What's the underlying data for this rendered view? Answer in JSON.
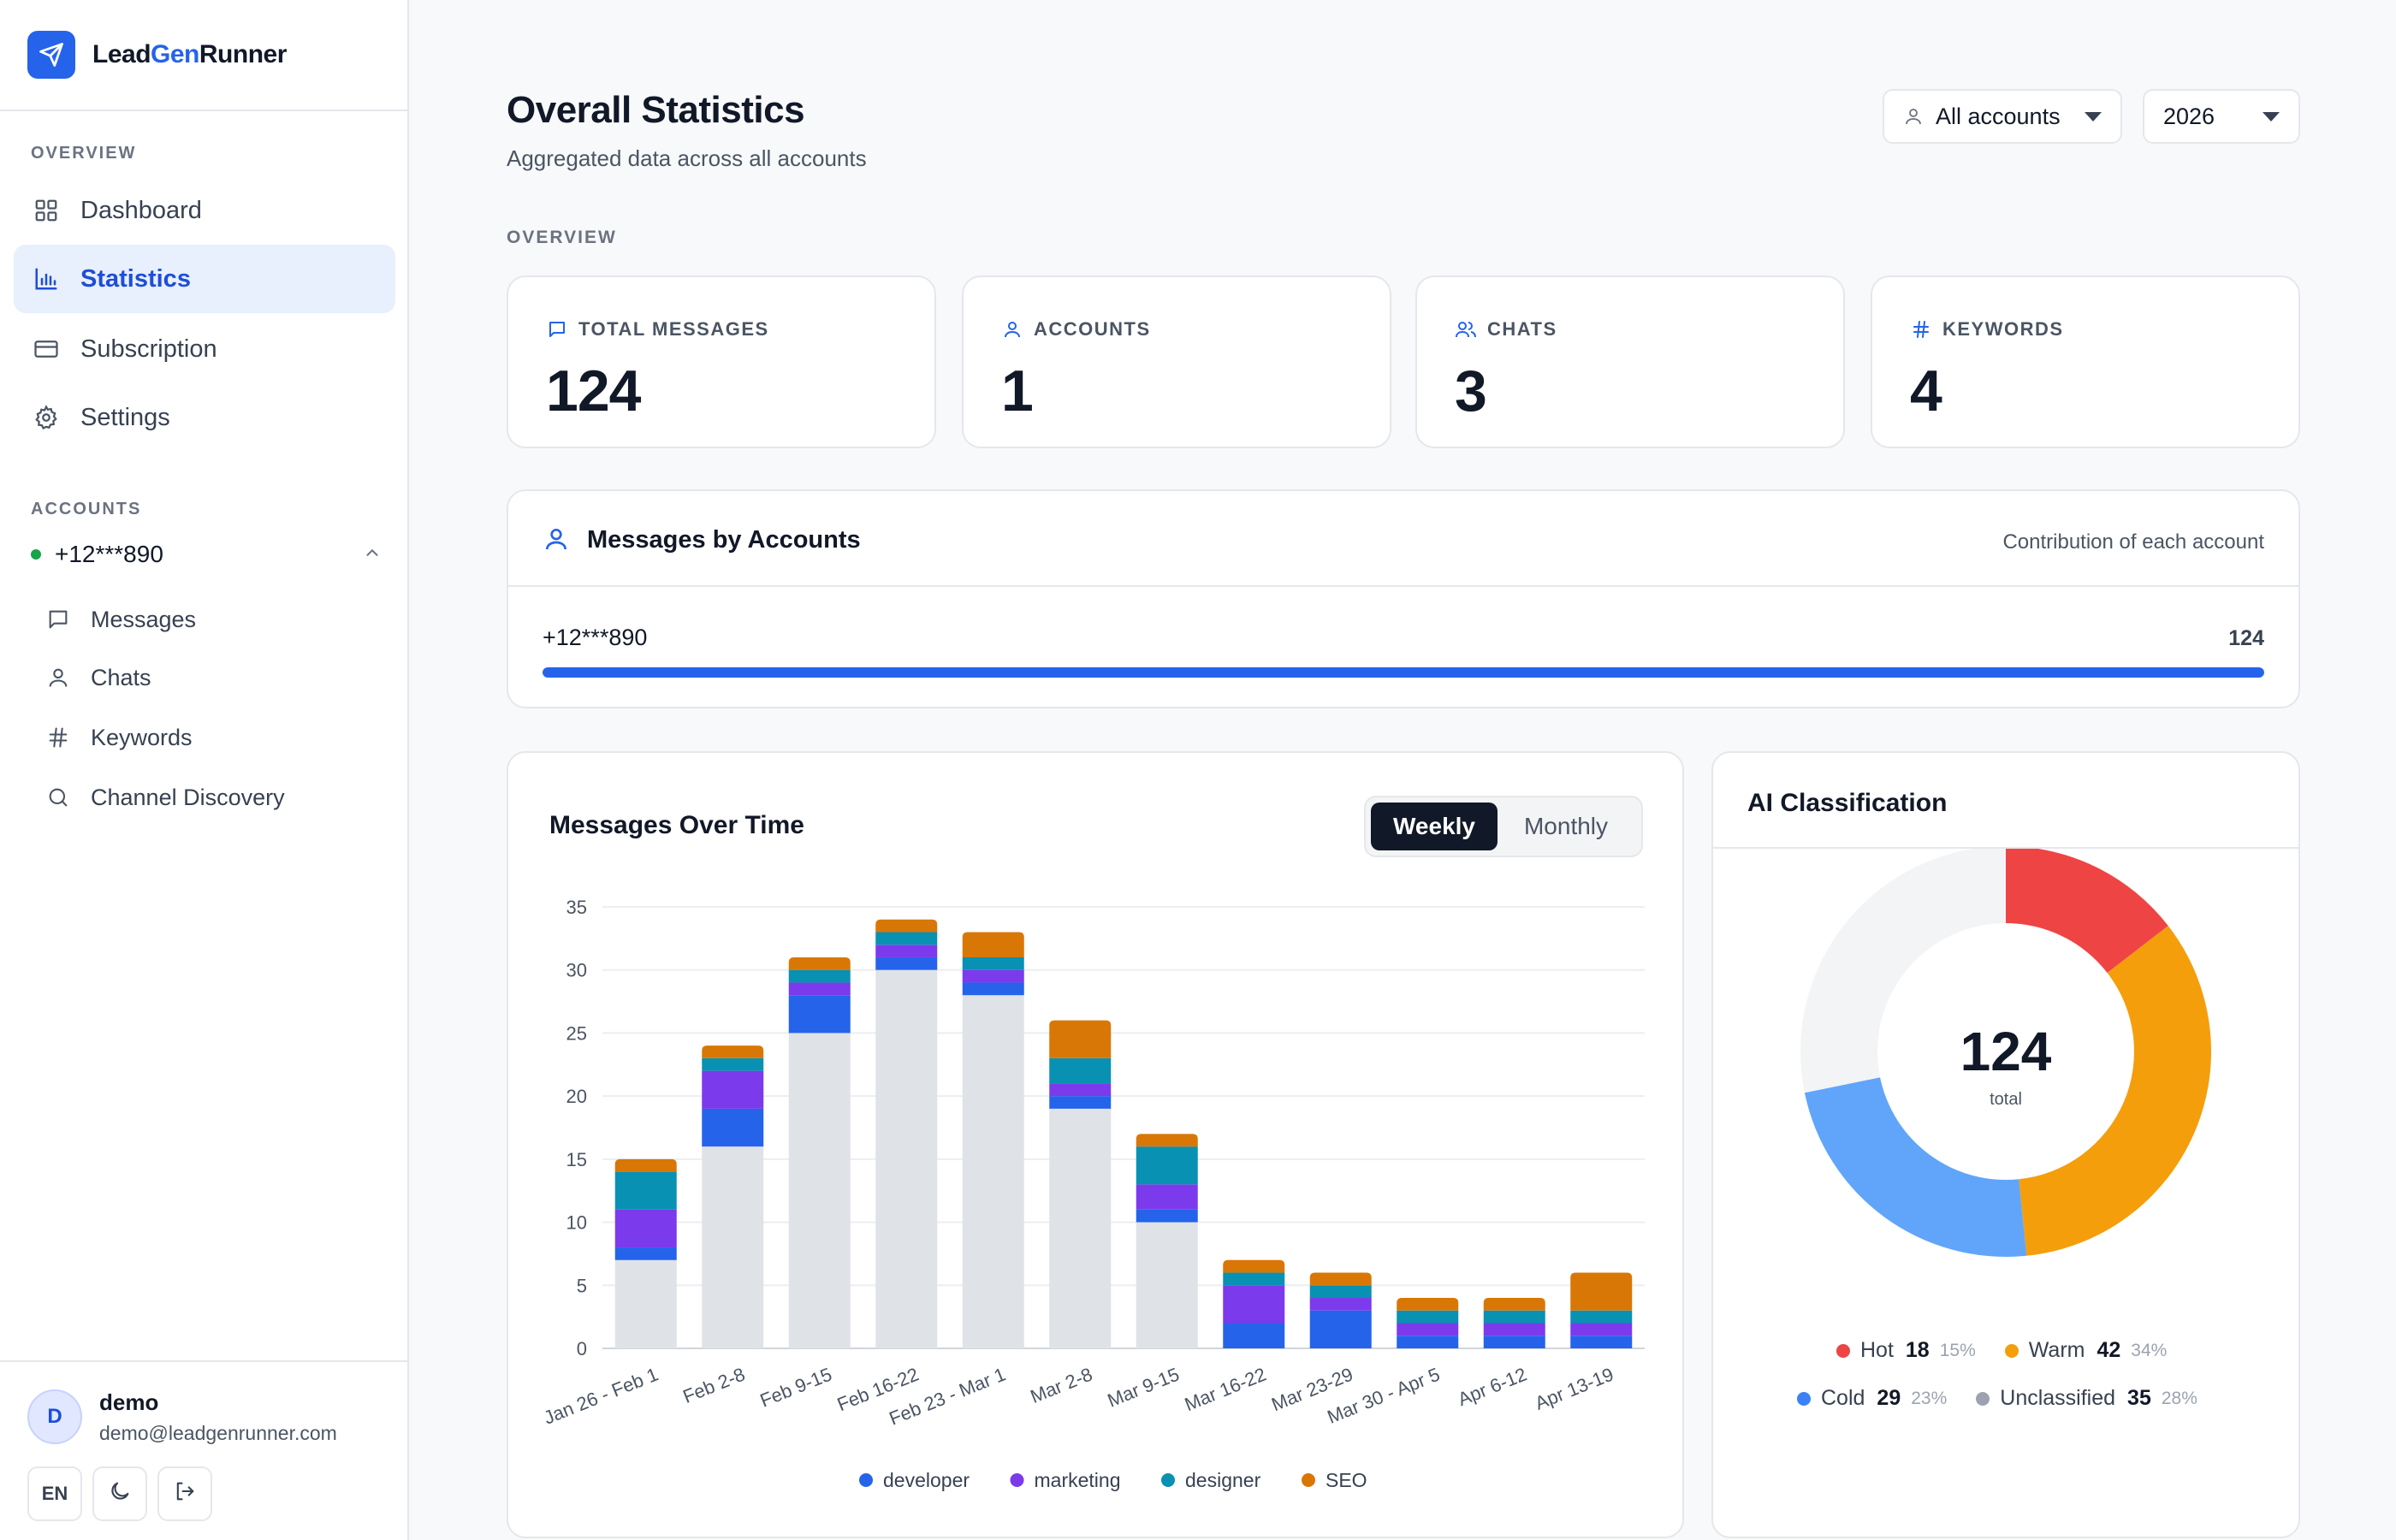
{
  "brand": {
    "prefix": "Lead",
    "highlight": "Gen",
    "suffix": "Runner"
  },
  "sidebar": {
    "overview_label": "OVERVIEW",
    "nav": [
      {
        "label": "Dashboard",
        "icon": "grid-icon"
      },
      {
        "label": "Statistics",
        "icon": "bar-chart-icon",
        "active": true
      },
      {
        "label": "Subscription",
        "icon": "credit-card-icon"
      },
      {
        "label": "Settings",
        "icon": "gear-icon"
      }
    ],
    "accounts_label": "ACCOUNTS",
    "account": "+12***890",
    "account_items": [
      {
        "label": "Messages",
        "icon": "message-icon"
      },
      {
        "label": "Chats",
        "icon": "user-icon"
      },
      {
        "label": "Keywords",
        "icon": "hash-icon"
      },
      {
        "label": "Channel Discovery",
        "icon": "search-icon"
      }
    ],
    "user": {
      "initial": "D",
      "name": "demo",
      "email": "demo@leadgenrunner.com",
      "lang": "EN"
    }
  },
  "header": {
    "title": "Overall Statistics",
    "subtitle": "Aggregated data across all accounts",
    "account_filter": "All accounts",
    "year_filter": "2026"
  },
  "overview": {
    "label": "OVERVIEW",
    "stats": [
      {
        "label": "TOTAL MESSAGES",
        "value": "124",
        "icon": "message-icon"
      },
      {
        "label": "ACCOUNTS",
        "value": "1",
        "icon": "user-icon"
      },
      {
        "label": "CHATS",
        "value": "3",
        "icon": "users-icon"
      },
      {
        "label": "KEYWORDS",
        "value": "4",
        "icon": "hash-icon"
      }
    ]
  },
  "messages_by_accounts": {
    "title": "Messages by Accounts",
    "subtitle": "Contribution of each account",
    "rows": [
      {
        "account": "+12***890",
        "count": "124",
        "share": 1.0
      }
    ]
  },
  "messages_over_time": {
    "title": "Messages Over Time",
    "toggle": {
      "weekly": "Weekly",
      "monthly": "Monthly",
      "active": "weekly"
    }
  },
  "ai_classification": {
    "title": "AI Classification",
    "total": "124",
    "total_label": "total",
    "items": [
      {
        "label": "Hot",
        "value": "18",
        "pct": "15%",
        "color": "#ef4444"
      },
      {
        "label": "Warm",
        "value": "42",
        "pct": "34%",
        "color": "#f59e0b"
      },
      {
        "label": "Cold",
        "value": "29",
        "pct": "23%",
        "color": "#60a5fa"
      },
      {
        "label": "Unclassified",
        "value": "35",
        "pct": "28%",
        "color": "#9ca3af"
      }
    ]
  },
  "chart_data": [
    {
      "type": "bar",
      "stacked": true,
      "title": "Messages Over Time",
      "categories": [
        "Jan 26 - Feb 1",
        "Feb 2-8",
        "Feb 9-15",
        "Feb 16-22",
        "Feb 23 - Mar 1",
        "Mar 2-8",
        "Mar 9-15",
        "Mar 16-22",
        "Mar 23-29",
        "Mar 30 - Apr 5",
        "Apr 6-12",
        "Apr 13-19"
      ],
      "series": [
        {
          "name": "",
          "color": "#dfe2e7",
          "values": [
            7,
            16,
            25,
            30,
            28,
            19,
            10,
            0,
            0,
            0,
            0,
            0
          ]
        },
        {
          "name": "developer",
          "color": "#2563eb",
          "values": [
            1,
            3,
            3,
            1,
            1,
            1,
            1,
            2,
            3,
            1,
            1,
            1
          ]
        },
        {
          "name": "marketing",
          "color": "#7c3aed",
          "values": [
            3,
            3,
            1,
            1,
            1,
            1,
            2,
            3,
            1,
            1,
            1,
            1
          ]
        },
        {
          "name": "designer",
          "color": "#0891b2",
          "values": [
            3,
            1,
            1,
            1,
            1,
            2,
            3,
            1,
            1,
            1,
            1,
            1
          ]
        },
        {
          "name": "SEO",
          "color": "#d97706",
          "values": [
            1,
            1,
            1,
            1,
            2,
            3,
            1,
            1,
            1,
            1,
            1,
            3
          ]
        }
      ],
      "ylim": [
        0,
        35
      ],
      "yticks": [
        0,
        5,
        10,
        15,
        20,
        25,
        30,
        35
      ],
      "grid": true,
      "legend": "bottom"
    },
    {
      "type": "pie",
      "donut": true,
      "title": "AI Classification",
      "categories": [
        "Hot",
        "Warm",
        "Cold",
        "Unclassified"
      ],
      "values": [
        18,
        42,
        29,
        35
      ],
      "colors": [
        "#ef4444",
        "#f59e0b",
        "#60a5fa",
        "#f3f4f6"
      ],
      "legend": "bottom"
    }
  ]
}
